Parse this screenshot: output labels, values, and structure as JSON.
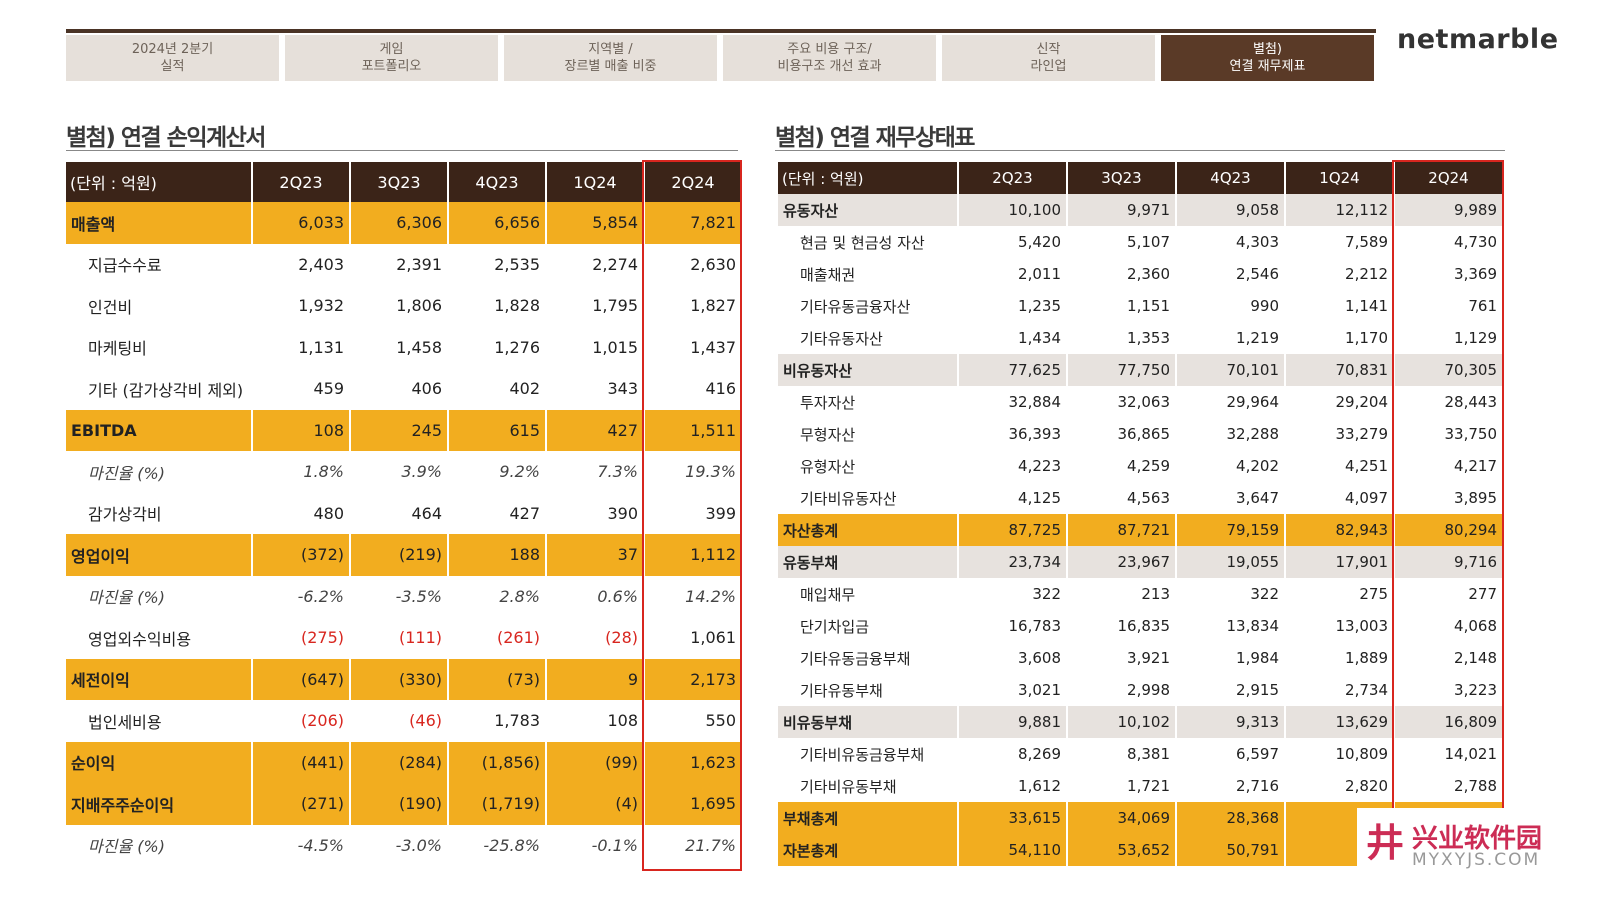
{
  "nav": {
    "tabs": [
      {
        "line1": "2024년 2분기",
        "line2": "실적"
      },
      {
        "line1": "게임",
        "line2": "포트폴리오"
      },
      {
        "line1": "지역별 /",
        "line2": "장르별 매출 비중"
      },
      {
        "line1": "주요 비용 구조/",
        "line2": "비용구조 개선 효과"
      },
      {
        "line1": "신작",
        "line2": "라인업"
      },
      {
        "line1": "별첨)",
        "line2": "연결 재무제표"
      }
    ],
    "active_index": 5
  },
  "brand": "netmarble",
  "left": {
    "title": "별첨) 연결 손익계산서",
    "unit": "(단위 : 억원)",
    "columns": [
      "2Q23",
      "3Q23",
      "4Q23",
      "1Q24",
      "2Q24"
    ],
    "rows": [
      {
        "label": "매출액",
        "values": [
          "6,033",
          "6,306",
          "6,656",
          "5,854",
          "7,821"
        ]
      },
      {
        "label": "지급수수료",
        "values": [
          "2,403",
          "2,391",
          "2,535",
          "2,274",
          "2,630"
        ]
      },
      {
        "label": "인건비",
        "values": [
          "1,932",
          "1,806",
          "1,828",
          "1,795",
          "1,827"
        ]
      },
      {
        "label": "마케팅비",
        "values": [
          "1,131",
          "1,458",
          "1,276",
          "1,015",
          "1,437"
        ]
      },
      {
        "label": "기타 (감가상각비 제외)",
        "values": [
          "459",
          "406",
          "402",
          "343",
          "416"
        ]
      },
      {
        "label": "EBITDA",
        "values": [
          "108",
          "245",
          "615",
          "427",
          "1,511"
        ]
      },
      {
        "label": "마진율 (%)",
        "values": [
          "1.8%",
          "3.9%",
          "9.2%",
          "7.3%",
          "19.3%"
        ]
      },
      {
        "label": "감가상각비",
        "values": [
          "480",
          "464",
          "427",
          "390",
          "399"
        ]
      },
      {
        "label": "영업이익",
        "values": [
          "(372)",
          "(219)",
          "188",
          "37",
          "1,112"
        ]
      },
      {
        "label": "마진율 (%)",
        "values": [
          "-6.2%",
          "-3.5%",
          "2.8%",
          "0.6%",
          "14.2%"
        ]
      },
      {
        "label": "영업외수익비용",
        "values": [
          "(275)",
          "(111)",
          "(261)",
          "(28)",
          "1,061"
        ]
      },
      {
        "label": "세전이익",
        "values": [
          "(647)",
          "(330)",
          "(73)",
          "9",
          "2,173"
        ]
      },
      {
        "label": "법인세비용",
        "values": [
          "(206)",
          "(46)",
          "1,783",
          "108",
          "550"
        ]
      },
      {
        "label": "순이익",
        "values": [
          "(441)",
          "(284)",
          "(1,856)",
          "(99)",
          "1,623"
        ]
      },
      {
        "label": "지배주주순이익",
        "values": [
          "(271)",
          "(190)",
          "(1,719)",
          "(4)",
          "1,695"
        ]
      },
      {
        "label": "마진율 (%)",
        "values": [
          "-4.5%",
          "-3.0%",
          "-25.8%",
          "-0.1%",
          "21.7%"
        ]
      }
    ]
  },
  "right": {
    "title": "별첨) 연결 재무상태표",
    "unit": "(단위 : 억원)",
    "columns": [
      "2Q23",
      "3Q23",
      "4Q23",
      "1Q24",
      "2Q24"
    ],
    "rows": [
      {
        "label": "유동자산",
        "values": [
          "10,100",
          "9,971",
          "9,058",
          "12,112",
          "9,989"
        ]
      },
      {
        "label": "현금 및 현금성 자산",
        "values": [
          "5,420",
          "5,107",
          "4,303",
          "7,589",
          "4,730"
        ]
      },
      {
        "label": "매출채권",
        "values": [
          "2,011",
          "2,360",
          "2,546",
          "2,212",
          "3,369"
        ]
      },
      {
        "label": "기타유동금융자산",
        "values": [
          "1,235",
          "1,151",
          "990",
          "1,141",
          "761"
        ]
      },
      {
        "label": "기타유동자산",
        "values": [
          "1,434",
          "1,353",
          "1,219",
          "1,170",
          "1,129"
        ]
      },
      {
        "label": "비유동자산",
        "values": [
          "77,625",
          "77,750",
          "70,101",
          "70,831",
          "70,305"
        ]
      },
      {
        "label": "투자자산",
        "values": [
          "32,884",
          "32,063",
          "29,964",
          "29,204",
          "28,443"
        ]
      },
      {
        "label": "무형자산",
        "values": [
          "36,393",
          "36,865",
          "32,288",
          "33,279",
          "33,750"
        ]
      },
      {
        "label": "유형자산",
        "values": [
          "4,223",
          "4,259",
          "4,202",
          "4,251",
          "4,217"
        ]
      },
      {
        "label": "기타비유동자산",
        "values": [
          "4,125",
          "4,563",
          "3,647",
          "4,097",
          "3,895"
        ]
      },
      {
        "label": "자산총계",
        "values": [
          "87,725",
          "87,721",
          "79,159",
          "82,943",
          "80,294"
        ]
      },
      {
        "label": "유동부채",
        "values": [
          "23,734",
          "23,967",
          "19,055",
          "17,901",
          "9,716"
        ]
      },
      {
        "label": "매입채무",
        "values": [
          "322",
          "213",
          "322",
          "275",
          "277"
        ]
      },
      {
        "label": "단기차입금",
        "values": [
          "16,783",
          "16,835",
          "13,834",
          "13,003",
          "4,068"
        ]
      },
      {
        "label": "기타유동금융부채",
        "values": [
          "3,608",
          "3,921",
          "1,984",
          "1,889",
          "2,148"
        ]
      },
      {
        "label": "기타유동부채",
        "values": [
          "3,021",
          "2,998",
          "2,915",
          "2,734",
          "3,223"
        ]
      },
      {
        "label": "비유동부채",
        "values": [
          "9,881",
          "10,102",
          "9,313",
          "13,629",
          "16,809"
        ]
      },
      {
        "label": "기타비유동금융부채",
        "values": [
          "8,269",
          "8,381",
          "6,597",
          "10,809",
          "14,021"
        ]
      },
      {
        "label": "기타비유동부채",
        "values": [
          "1,612",
          "1,721",
          "2,716",
          "2,820",
          "2,788"
        ]
      },
      {
        "label": "부채총계",
        "values": [
          "33,615",
          "34,069",
          "28,368",
          "31,",
          ""
        ]
      },
      {
        "label": "자본총계",
        "values": [
          "54,110",
          "53,652",
          "50,791",
          "51,",
          ""
        ]
      }
    ]
  },
  "watermark": {
    "cn": "兴业软件园",
    "en": "MYXYJS.COM",
    "glyph": "井"
  },
  "colors": {
    "highlight": "#f2ad1f",
    "header": "#3b2418",
    "group": "#e7e2de",
    "negative": "#d8261f",
    "accent_box": "#d8261f"
  }
}
